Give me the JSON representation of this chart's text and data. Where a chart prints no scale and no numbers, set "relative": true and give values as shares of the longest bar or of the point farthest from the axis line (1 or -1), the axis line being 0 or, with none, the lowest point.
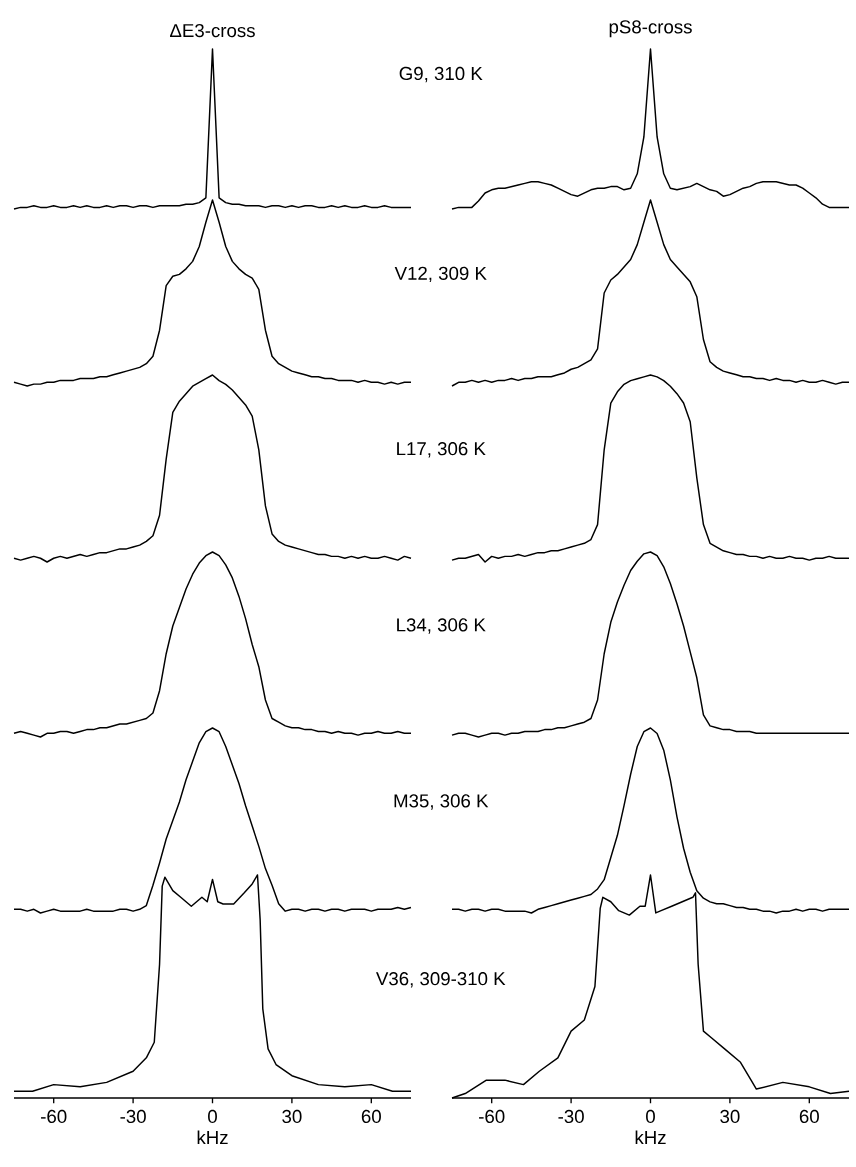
{
  "chart_data": [
    {
      "type": "line",
      "title": "ΔE3-cross",
      "annotations": [
        "G9, 310 K"
      ],
      "relative": true,
      "color": "#000000",
      "tick_labels": false,
      "categories": [
        null,
        null,
        null,
        null,
        null,
        null,
        null,
        null,
        null,
        null,
        null,
        null,
        null,
        null,
        null,
        null,
        null,
        null,
        null,
        null,
        null,
        null,
        null,
        null,
        null,
        null,
        null,
        null,
        null,
        null,
        null,
        null,
        null,
        null,
        null,
        null,
        null,
        null,
        null,
        null,
        null,
        null,
        null,
        null,
        null,
        null,
        null,
        null,
        null,
        null,
        null,
        null,
        null,
        null,
        null,
        null,
        null,
        null,
        null,
        null,
        null
      ],
      "values": [
        0,
        0.01,
        0.01,
        0.02,
        0.01,
        0.01,
        0.02,
        0.01,
        0.01,
        0.02,
        0.01,
        0.02,
        0.01,
        0.01,
        0.02,
        0.01,
        0.02,
        0.02,
        0.01,
        0.02,
        0.02,
        0.01,
        0.02,
        0.02,
        0.02,
        0.02,
        0.03,
        0.03,
        0.04,
        0.07,
        1,
        0.07,
        0.04,
        0.03,
        0.03,
        0.02,
        0.02,
        0.02,
        0.01,
        0.02,
        0.02,
        0.01,
        0.02,
        0.01,
        0.02,
        0.02,
        0.01,
        0.01,
        0.02,
        0.01,
        0.02,
        0.01,
        0.01,
        0.02,
        0.01,
        0.01,
        0.02,
        0.01,
        0.01,
        0.01,
        0.01
      ]
    },
    {
      "type": "line",
      "title": "pS8-cross",
      "relative": true,
      "color": "#000000",
      "tick_labels": false,
      "categories": [
        null,
        null,
        null,
        null,
        null,
        null,
        null,
        null,
        null,
        null,
        null,
        null,
        null,
        null,
        null,
        null,
        null,
        null,
        null,
        null,
        null,
        null,
        null,
        null,
        null,
        null,
        null,
        null,
        null,
        null,
        null,
        null,
        null,
        null,
        null,
        null,
        null,
        null,
        null,
        null,
        null,
        null,
        null,
        null,
        null,
        null,
        null,
        null,
        null,
        null,
        null,
        null,
        null,
        null,
        null,
        null,
        null,
        null,
        null,
        null,
        null
      ],
      "values": [
        0,
        0.01,
        0.01,
        0.01,
        0.05,
        0.1,
        0.12,
        0.13,
        0.13,
        0.14,
        0.15,
        0.16,
        0.17,
        0.17,
        0.16,
        0.15,
        0.13,
        0.11,
        0.09,
        0.08,
        0.1,
        0.12,
        0.13,
        0.13,
        0.14,
        0.14,
        0.12,
        0.13,
        0.22,
        0.45,
        1,
        0.45,
        0.22,
        0.13,
        0.12,
        0.13,
        0.14,
        0.16,
        0.14,
        0.12,
        0.11,
        0.08,
        0.09,
        0.11,
        0.13,
        0.14,
        0.16,
        0.17,
        0.17,
        0.17,
        0.16,
        0.15,
        0.15,
        0.13,
        0.1,
        0.07,
        0.03,
        0.01,
        0.01,
        0.01,
        0.01
      ]
    },
    {
      "type": "line",
      "annotations": [
        "V12, 309 K"
      ],
      "relative": true,
      "color": "#000000",
      "tick_labels": false,
      "categories": [
        null,
        null,
        null,
        null,
        null,
        null,
        null,
        null,
        null,
        null,
        null,
        null,
        null,
        null,
        null,
        null,
        null,
        null,
        null,
        null,
        null,
        null,
        null,
        null,
        null,
        null,
        null,
        null,
        null,
        null,
        null,
        null,
        null,
        null,
        null,
        null,
        null,
        null,
        null,
        null,
        null,
        null,
        null,
        null,
        null,
        null,
        null,
        null,
        null,
        null,
        null,
        null,
        null,
        null,
        null,
        null,
        null,
        null,
        null,
        null,
        null
      ],
      "values": [
        0.02,
        0.01,
        0,
        0.01,
        0.01,
        0.02,
        0.02,
        0.03,
        0.03,
        0.03,
        0.04,
        0.04,
        0.04,
        0.05,
        0.05,
        0.06,
        0.07,
        0.08,
        0.09,
        0.1,
        0.12,
        0.16,
        0.3,
        0.54,
        0.59,
        0.6,
        0.63,
        0.67,
        0.75,
        0.88,
        1,
        0.88,
        0.75,
        0.67,
        0.63,
        0.6,
        0.58,
        0.52,
        0.3,
        0.16,
        0.12,
        0.1,
        0.08,
        0.07,
        0.06,
        0.05,
        0.05,
        0.04,
        0.04,
        0.03,
        0.03,
        0.03,
        0.02,
        0.03,
        0.02,
        0.02,
        0.01,
        0.02,
        0.01,
        0.02,
        0.02
      ]
    },
    {
      "type": "line",
      "relative": true,
      "color": "#000000",
      "tick_labels": false,
      "categories": [
        null,
        null,
        null,
        null,
        null,
        null,
        null,
        null,
        null,
        null,
        null,
        null,
        null,
        null,
        null,
        null,
        null,
        null,
        null,
        null,
        null,
        null,
        null,
        null,
        null,
        null,
        null,
        null,
        null,
        null,
        null,
        null,
        null,
        null,
        null,
        null,
        null,
        null,
        null,
        null,
        null,
        null,
        null,
        null,
        null,
        null,
        null,
        null,
        null,
        null,
        null,
        null,
        null,
        null,
        null,
        null,
        null,
        null,
        null,
        null,
        null
      ],
      "values": [
        0,
        0.02,
        0.02,
        0.03,
        0.02,
        0.03,
        0.02,
        0.03,
        0.03,
        0.04,
        0.03,
        0.04,
        0.04,
        0.05,
        0.05,
        0.05,
        0.06,
        0.07,
        0.09,
        0.1,
        0.12,
        0.14,
        0.2,
        0.5,
        0.57,
        0.6,
        0.64,
        0.68,
        0.76,
        0.88,
        1,
        0.88,
        0.76,
        0.68,
        0.64,
        0.6,
        0.56,
        0.48,
        0.25,
        0.13,
        0.1,
        0.08,
        0.07,
        0.06,
        0.05,
        0.05,
        0.04,
        0.04,
        0.03,
        0.04,
        0.03,
        0.03,
        0.02,
        0.03,
        0.02,
        0.02,
        0.03,
        0.02,
        0.01,
        0.02,
        0.02
      ]
    },
    {
      "type": "line",
      "annotations": [
        "L17, 306 K"
      ],
      "relative": true,
      "color": "#000000",
      "tick_labels": false,
      "categories": [
        null,
        null,
        null,
        null,
        null,
        null,
        null,
        null,
        null,
        null,
        null,
        null,
        null,
        null,
        null,
        null,
        null,
        null,
        null,
        null,
        null,
        null,
        null,
        null,
        null,
        null,
        null,
        null,
        null,
        null,
        null,
        null,
        null,
        null,
        null,
        null,
        null,
        null,
        null,
        null,
        null,
        null,
        null,
        null,
        null,
        null,
        null,
        null,
        null,
        null,
        null,
        null,
        null,
        null,
        null,
        null,
        null,
        null,
        null,
        null,
        null
      ],
      "values": [
        0.02,
        0.01,
        0.02,
        0.03,
        0.02,
        0,
        0.02,
        0.03,
        0.02,
        0.03,
        0.04,
        0.03,
        0.04,
        0.05,
        0.05,
        0.06,
        0.07,
        0.07,
        0.08,
        0.09,
        0.11,
        0.14,
        0.25,
        0.55,
        0.8,
        0.86,
        0.9,
        0.94,
        0.96,
        0.98,
        1,
        0.97,
        0.95,
        0.92,
        0.88,
        0.84,
        0.78,
        0.6,
        0.3,
        0.15,
        0.11,
        0.09,
        0.08,
        0.07,
        0.06,
        0.05,
        0.04,
        0.04,
        0.03,
        0.03,
        0.02,
        0.03,
        0.02,
        0.03,
        0.02,
        0.02,
        0.03,
        0.02,
        0.01,
        0.03,
        0.02
      ]
    },
    {
      "type": "line",
      "relative": true,
      "color": "#000000",
      "tick_labels": false,
      "categories": [
        null,
        null,
        null,
        null,
        null,
        null,
        null,
        null,
        null,
        null,
        null,
        null,
        null,
        null,
        null,
        null,
        null,
        null,
        null,
        null,
        null,
        null,
        null,
        null,
        null,
        null,
        null,
        null,
        null,
        null,
        null,
        null,
        null,
        null,
        null,
        null,
        null,
        null,
        null,
        null,
        null,
        null,
        null,
        null,
        null,
        null,
        null,
        null,
        null,
        null,
        null,
        null,
        null,
        null,
        null,
        null,
        null,
        null,
        null,
        null,
        null
      ],
      "values": [
        0.01,
        0.02,
        0.02,
        0.03,
        0.04,
        0,
        0.03,
        0.02,
        0.03,
        0.03,
        0.04,
        0.03,
        0.04,
        0.05,
        0.05,
        0.06,
        0.06,
        0.07,
        0.08,
        0.09,
        0.1,
        0.12,
        0.2,
        0.6,
        0.85,
        0.91,
        0.95,
        0.97,
        0.98,
        0.99,
        1,
        0.99,
        0.97,
        0.94,
        0.9,
        0.85,
        0.75,
        0.45,
        0.2,
        0.1,
        0.08,
        0.06,
        0.05,
        0.04,
        0.04,
        0.03,
        0.03,
        0.02,
        0.03,
        0.02,
        0.02,
        0.03,
        0.02,
        0.02,
        0.01,
        0.02,
        0.02,
        0.03,
        0.02,
        0.02,
        0.02
      ]
    },
    {
      "type": "line",
      "annotations": [
        "L34, 306 K"
      ],
      "relative": true,
      "color": "#000000",
      "tick_labels": false,
      "categories": [
        null,
        null,
        null,
        null,
        null,
        null,
        null,
        null,
        null,
        null,
        null,
        null,
        null,
        null,
        null,
        null,
        null,
        null,
        null,
        null,
        null,
        null,
        null,
        null,
        null,
        null,
        null,
        null,
        null,
        null,
        null,
        null,
        null,
        null,
        null,
        null,
        null,
        null,
        null,
        null,
        null,
        null,
        null,
        null,
        null,
        null,
        null,
        null,
        null,
        null,
        null,
        null,
        null,
        null,
        null,
        null,
        null,
        null,
        null,
        null,
        null
      ],
      "values": [
        0.02,
        0.03,
        0.02,
        0.01,
        0,
        0.02,
        0.02,
        0.03,
        0.03,
        0.02,
        0.03,
        0.04,
        0.04,
        0.05,
        0.05,
        0.06,
        0.07,
        0.07,
        0.08,
        0.09,
        0.1,
        0.13,
        0.25,
        0.45,
        0.6,
        0.7,
        0.8,
        0.88,
        0.94,
        0.98,
        1,
        0.98,
        0.93,
        0.86,
        0.76,
        0.64,
        0.5,
        0.38,
        0.2,
        0.1,
        0.08,
        0.06,
        0.05,
        0.05,
        0.04,
        0.04,
        0.03,
        0.03,
        0.02,
        0.03,
        0.02,
        0.02,
        0.01,
        0.02,
        0.02,
        0.03,
        0.02,
        0.02,
        0.03,
        0.02,
        0.02
      ]
    },
    {
      "type": "line",
      "relative": true,
      "color": "#000000",
      "tick_labels": false,
      "categories": [
        null,
        null,
        null,
        null,
        null,
        null,
        null,
        null,
        null,
        null,
        null,
        null,
        null,
        null,
        null,
        null,
        null,
        null,
        null,
        null,
        null,
        null,
        null,
        null,
        null,
        null,
        null,
        null,
        null,
        null,
        null,
        null,
        null,
        null,
        null,
        null,
        null,
        null,
        null,
        null,
        null,
        null,
        null,
        null,
        null,
        null,
        null,
        null,
        null,
        null,
        null,
        null,
        null,
        null,
        null,
        null,
        null,
        null,
        null,
        null,
        null
      ],
      "values": [
        0.01,
        0.02,
        0.02,
        0.01,
        0,
        0.01,
        0.02,
        0.02,
        0.01,
        0.02,
        0.02,
        0.03,
        0.03,
        0.03,
        0.04,
        0.04,
        0.05,
        0.05,
        0.06,
        0.07,
        0.08,
        0.1,
        0.2,
        0.45,
        0.62,
        0.73,
        0.82,
        0.9,
        0.95,
        0.99,
        1,
        0.98,
        0.92,
        0.83,
        0.72,
        0.6,
        0.46,
        0.32,
        0.12,
        0.06,
        0.05,
        0.04,
        0.04,
        0.03,
        0.03,
        0.03,
        0.02,
        0.02,
        0.02,
        0.02,
        0.02,
        0.02,
        0.02,
        0.02,
        0.02,
        0.02,
        0.02,
        0.02,
        0.02,
        0.02,
        0.02
      ]
    },
    {
      "type": "line",
      "annotations": [
        "M35, 306 K"
      ],
      "relative": true,
      "color": "#000000",
      "tick_labels": false,
      "categories": [
        null,
        null,
        null,
        null,
        null,
        null,
        null,
        null,
        null,
        null,
        null,
        null,
        null,
        null,
        null,
        null,
        null,
        null,
        null,
        null,
        null,
        null,
        null,
        null,
        null,
        null,
        null,
        null,
        null,
        null,
        null,
        null,
        null,
        null,
        null,
        null,
        null,
        null,
        null,
        null,
        null,
        null,
        null,
        null,
        null,
        null,
        null,
        null,
        null,
        null,
        null,
        null,
        null,
        null,
        null,
        null,
        null,
        null,
        null,
        null,
        null
      ],
      "values": [
        0.02,
        0.02,
        0.01,
        0.02,
        0,
        0.01,
        0.02,
        0.01,
        0.01,
        0.01,
        0.01,
        0.02,
        0.01,
        0.01,
        0.01,
        0.01,
        0.02,
        0.02,
        0.01,
        0.02,
        0.04,
        0.15,
        0.27,
        0.4,
        0.5,
        0.6,
        0.72,
        0.82,
        0.92,
        0.98,
        1,
        0.98,
        0.9,
        0.8,
        0.7,
        0.58,
        0.47,
        0.36,
        0.24,
        0.15,
        0.05,
        0.01,
        0.02,
        0.02,
        0.01,
        0.02,
        0.02,
        0.01,
        0.02,
        0.02,
        0.01,
        0.02,
        0.02,
        0.02,
        0.01,
        0.02,
        0.02,
        0.02,
        0.03,
        0.02,
        0.03
      ]
    },
    {
      "type": "line",
      "relative": true,
      "color": "#000000",
      "tick_labels": false,
      "categories": [
        null,
        null,
        null,
        null,
        null,
        null,
        null,
        null,
        null,
        null,
        null,
        null,
        null,
        null,
        null,
        null,
        null,
        null,
        null,
        null,
        null,
        null,
        null,
        null,
        null,
        null,
        null,
        null,
        null,
        null,
        null,
        null,
        null,
        null,
        null,
        null,
        null,
        null,
        null,
        null,
        null,
        null,
        null,
        null,
        null,
        null,
        null,
        null,
        null,
        null,
        null,
        null,
        null,
        null,
        null,
        null,
        null,
        null,
        null,
        null,
        null
      ],
      "values": [
        0.02,
        0.02,
        0.01,
        0.02,
        0.02,
        0.01,
        0.02,
        0.02,
        0.01,
        0.01,
        0.01,
        0.01,
        0,
        0.02,
        0.03,
        0.04,
        0.05,
        0.06,
        0.07,
        0.08,
        0.09,
        0.1,
        0.13,
        0.18,
        0.3,
        0.42,
        0.58,
        0.75,
        0.9,
        0.98,
        1,
        0.97,
        0.88,
        0.72,
        0.52,
        0.35,
        0.22,
        0.12,
        0.08,
        0.06,
        0.05,
        0.05,
        0.04,
        0.03,
        0.03,
        0.02,
        0.02,
        0.01,
        0.01,
        0,
        0.01,
        0.01,
        0.02,
        0.01,
        0.02,
        0.02,
        0.01,
        0.02,
        0.02,
        0.02,
        0.02
      ]
    },
    {
      "type": "line",
      "annotations": [
        "V36, 309-310 K"
      ],
      "relative": true,
      "color": "#000000",
      "xlim": [
        -75,
        75
      ],
      "tick_labels": "x",
      "xlabel": "kHz",
      "xticks": [
        -60,
        -30,
        0,
        30,
        60
      ],
      "x": [
        -75,
        -68,
        -60,
        -50,
        -40,
        -30,
        -25,
        -22,
        -20,
        -19,
        -18,
        -15,
        -12,
        -8,
        -4,
        -2,
        0,
        2,
        4,
        8,
        12,
        15,
        17,
        18,
        19,
        21,
        24,
        30,
        40,
        50,
        60,
        68,
        75
      ],
      "values": [
        0.03,
        0.03,
        0.06,
        0.05,
        0.07,
        0.12,
        0.18,
        0.25,
        0.6,
        0.95,
        0.99,
        0.93,
        0.9,
        0.86,
        0.9,
        0.88,
        0.98,
        0.88,
        0.87,
        0.87,
        0.92,
        0.96,
        1,
        0.8,
        0.4,
        0.22,
        0.15,
        0.1,
        0.06,
        0.05,
        0.06,
        0.03,
        0.03
      ]
    },
    {
      "type": "line",
      "relative": true,
      "color": "#000000",
      "xlim": [
        -75,
        75
      ],
      "tick_labels": "x",
      "xlabel": "kHz",
      "xticks": [
        -60,
        -30,
        0,
        30,
        60
      ],
      "x": [
        -75,
        -70,
        -62,
        -55,
        -48,
        -42,
        -35,
        -30,
        -25,
        -21,
        -19,
        -18,
        -15,
        -12,
        -8,
        -4,
        -2,
        0,
        2,
        4,
        8,
        12,
        16,
        17,
        18,
        20,
        23,
        28,
        34,
        38,
        40,
        50,
        60,
        68,
        75
      ],
      "values": [
        0,
        0.02,
        0.08,
        0.08,
        0.06,
        0.12,
        0.18,
        0.3,
        0.35,
        0.5,
        0.85,
        0.9,
        0.88,
        0.84,
        0.82,
        0.86,
        0.86,
        1,
        0.83,
        0.84,
        0.86,
        0.88,
        0.9,
        0.92,
        0.6,
        0.3,
        0.27,
        0.22,
        0.16,
        0.08,
        0.04,
        0.07,
        0.05,
        0.02,
        0.03
      ]
    }
  ]
}
